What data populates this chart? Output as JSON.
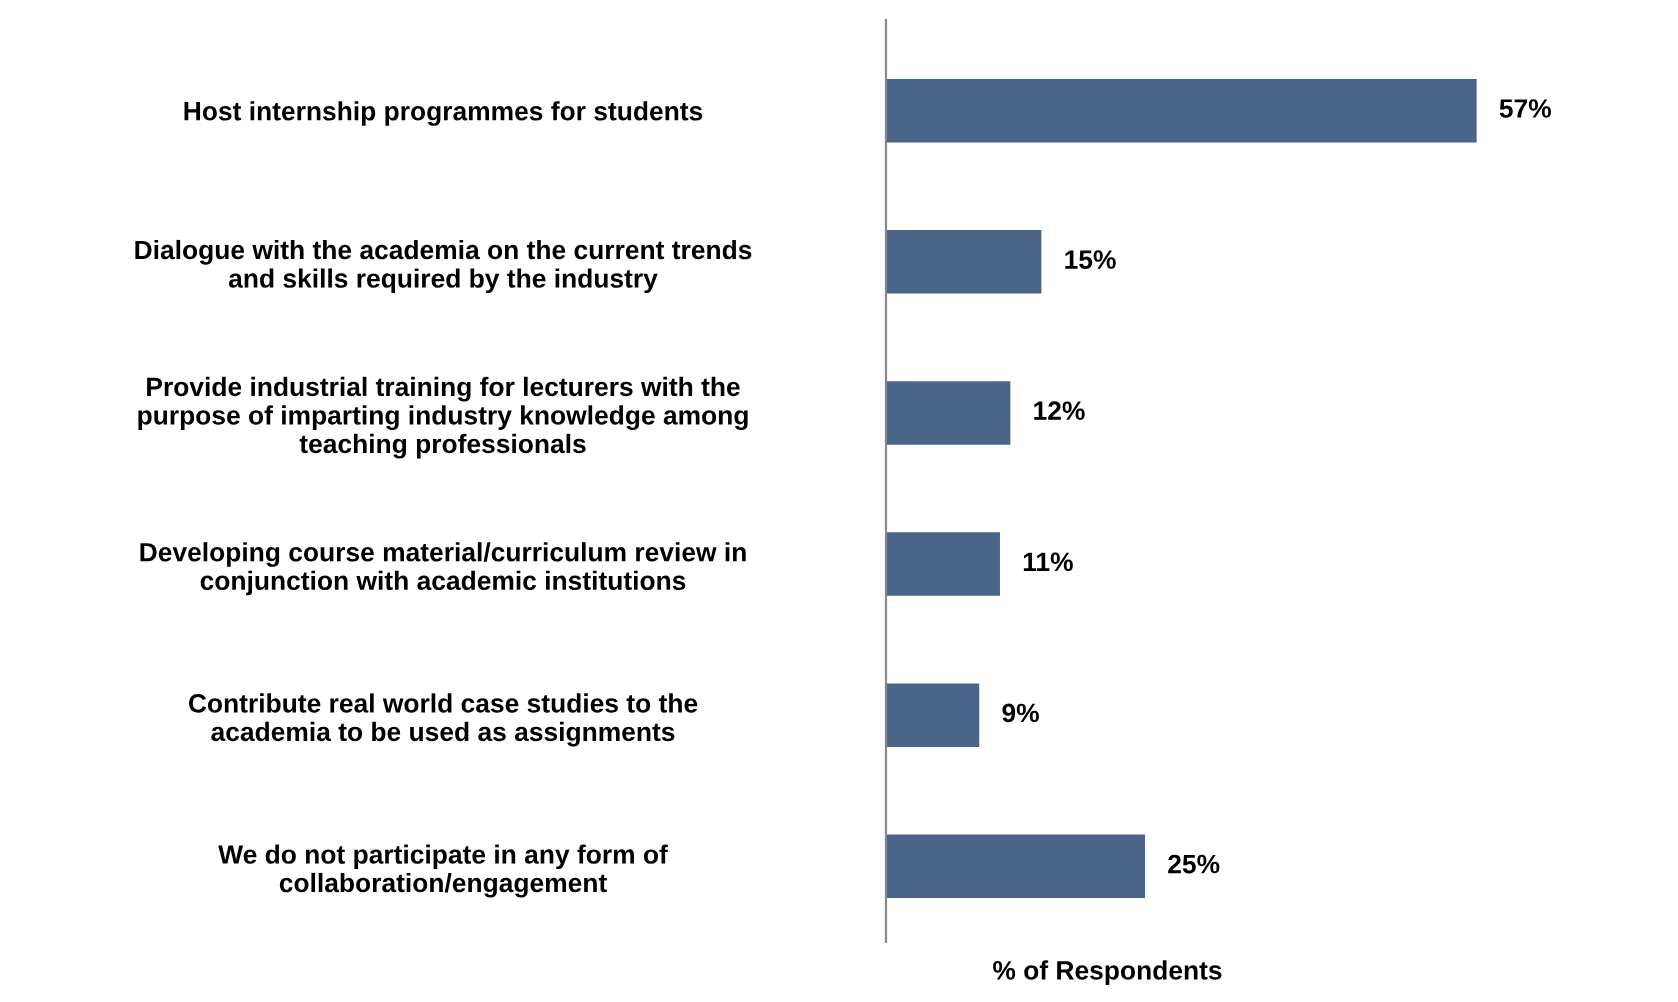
{
  "chart_data": {
    "type": "bar",
    "orientation": "horizontal",
    "xlabel": "% of Respondents",
    "categories": [
      "Host internship programmes for students",
      "Dialogue with the academia on the current trends\nand skills required by the industry",
      "Provide industrial training for lecturers with the\npurpose of imparting industry knowledge among\nteaching professionals",
      "Developing course material/curriculum review in\nconjunction with academic institutions",
      "Contribute real world case studies to the\nacademia to be used as assignments",
      "We do not participate in any form of\ncollaboration/engagement"
    ],
    "values": [
      57,
      15,
      12,
      11,
      9,
      25
    ],
    "value_labels": [
      "57%",
      "15%",
      "12%",
      "11%",
      "9%",
      "25%"
    ],
    "color": "#4a6588",
    "grid": false,
    "legend": false
  }
}
